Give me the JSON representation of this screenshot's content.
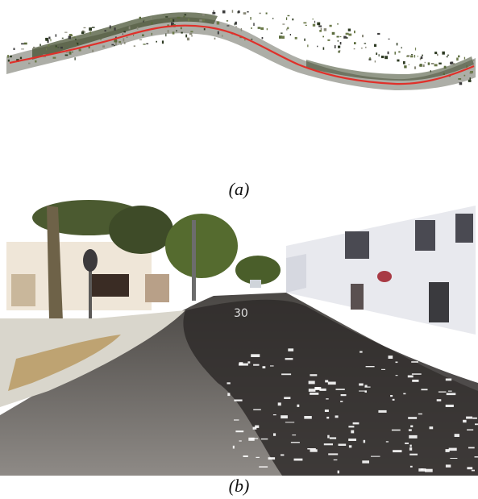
{
  "figure": {
    "panels": [
      {
        "id": "a",
        "caption": "(a)",
        "content": "point-cloud-trajectory-overview"
      },
      {
        "id": "b",
        "caption": "(b)",
        "content": "street-level-point-cloud-view"
      }
    ]
  },
  "colors": {
    "trajectory": "#e0302a",
    "sky": "#ffffff",
    "road": "#5e5c5a",
    "road_shadow": "#2f2c2a",
    "building": "#e8e9ee",
    "foliage": "#4a5a2c",
    "trunk": "#6e6248",
    "dry_grass": "#b99a62"
  }
}
